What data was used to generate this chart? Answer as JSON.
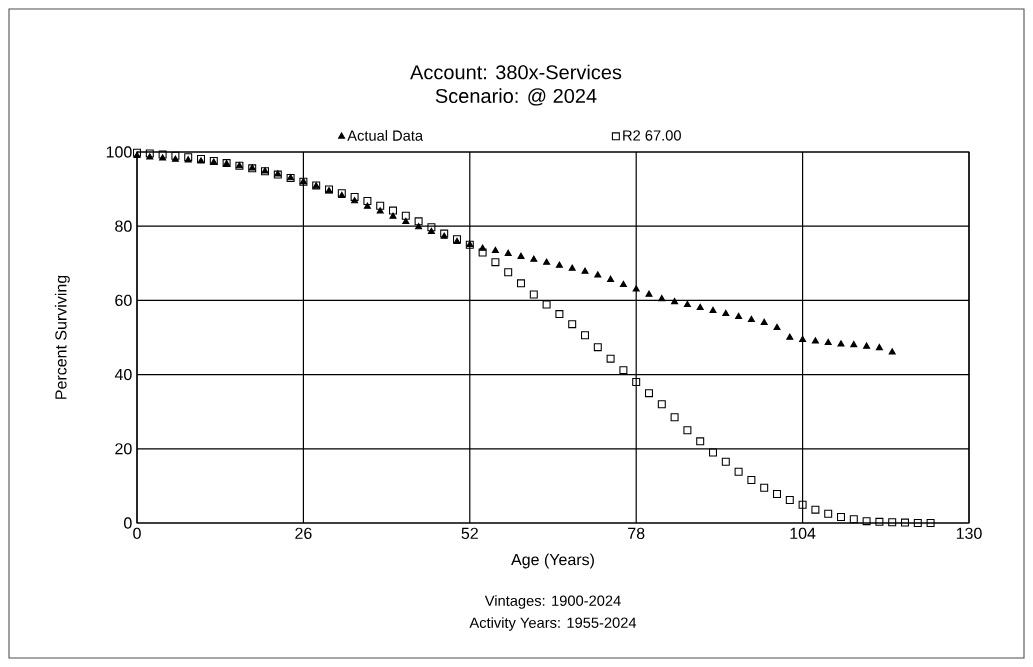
{
  "chart_data": {
    "type": "scatter",
    "title": "Account: 380x-Services",
    "subtitle": "Scenario: @ 2024",
    "xlabel": "Age (Years)",
    "ylabel": "Percent Surviving",
    "annotations": [
      "Vintages: 1900-2024",
      "Activity Years: 1955-2024"
    ],
    "xlim": [
      0,
      130
    ],
    "ylim": [
      0,
      100
    ],
    "xticks": [
      0,
      26,
      52,
      78,
      104,
      130
    ],
    "yticks": [
      0,
      20,
      40,
      60,
      80,
      100
    ],
    "grid": true,
    "legend": "top",
    "series": [
      {
        "name": "Actual Data",
        "color": "#000000",
        "marker": "triangle",
        "x": [
          0,
          2,
          4,
          6,
          8,
          10,
          12,
          14,
          16,
          18,
          20,
          22,
          24,
          26,
          28,
          30,
          32,
          34,
          36,
          38,
          40,
          42,
          44,
          46,
          48,
          50,
          52,
          54,
          56,
          58,
          60,
          62,
          64,
          66,
          68,
          70,
          72,
          74,
          76,
          78,
          80,
          82,
          84,
          86,
          88,
          90,
          92,
          94,
          96,
          98,
          100,
          102,
          104,
          106,
          108,
          110,
          112,
          114,
          116,
          118
        ],
        "values": [
          99,
          98.6,
          98.3,
          98,
          97.8,
          97.5,
          97.2,
          96.8,
          96.2,
          95.6,
          94.8,
          94,
          93,
          92,
          90.8,
          89.5,
          88.2,
          86.8,
          85.3,
          84,
          82.6,
          81.2,
          79.8,
          78.5,
          77.2,
          75.8,
          75,
          74,
          73.4,
          72.6,
          71.8,
          71,
          70.2,
          69.4,
          68.6,
          67.8,
          66.8,
          65.6,
          64.2,
          63,
          61.6,
          60.4,
          59.6,
          58.8,
          58,
          57.2,
          56.4,
          55.6,
          54.8,
          54,
          52.6,
          50,
          49.4,
          49,
          48.6,
          48.2,
          48,
          47.6,
          47.2,
          46
        ]
      },
      {
        "name": "R2 67.00",
        "color": "#000000",
        "marker": "square",
        "x": [
          0,
          2,
          4,
          6,
          8,
          10,
          12,
          14,
          16,
          18,
          20,
          22,
          24,
          26,
          28,
          30,
          32,
          34,
          36,
          38,
          40,
          42,
          44,
          46,
          48,
          50,
          52,
          54,
          56,
          58,
          60,
          62,
          64,
          66,
          68,
          70,
          72,
          74,
          76,
          78,
          80,
          82,
          84,
          86,
          88,
          90,
          92,
          94,
          96,
          98,
          100,
          102,
          104,
          106,
          108,
          110,
          112,
          114,
          116,
          118,
          120,
          122,
          124
        ],
        "values": [
          99.8,
          99.6,
          99.3,
          99,
          98.6,
          98.1,
          97.6,
          97,
          96.3,
          95.6,
          94.8,
          93.9,
          93,
          92,
          91,
          89.9,
          88.9,
          87.9,
          86.8,
          85.5,
          84.2,
          82.8,
          81.3,
          79.7,
          78,
          76.5,
          75,
          72.9,
          70.3,
          67.6,
          64.6,
          61.6,
          58.9,
          56.3,
          53.6,
          50.6,
          47.4,
          44.3,
          41.2,
          38,
          35,
          32,
          28.5,
          25,
          22,
          19,
          16.5,
          13.8,
          11.6,
          9.5,
          7.8,
          6.2,
          4.9,
          3.6,
          2.5,
          1.6,
          1,
          0.5,
          0.3,
          0.2,
          0.1,
          0,
          0
        ]
      }
    ]
  }
}
